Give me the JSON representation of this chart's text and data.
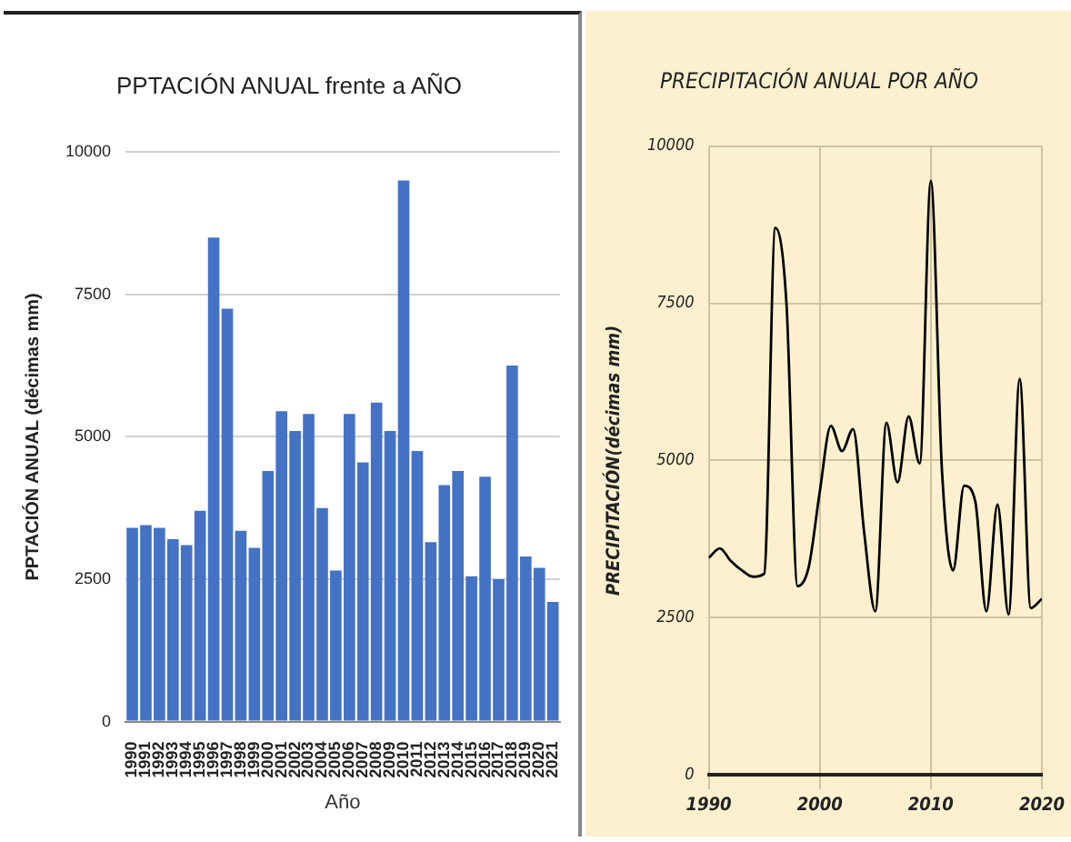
{
  "chart_data": [
    {
      "type": "bar",
      "title": "PPTACIÓN ANUAL frente a AÑO",
      "xlabel": "Año",
      "ylabel": "PPTACIÓN ANUAL (décimas mm)",
      "categories": [
        "1990",
        "1991",
        "1992",
        "1993",
        "1994",
        "1995",
        "1996",
        "1997",
        "1998",
        "1999",
        "2000",
        "2001",
        "2002",
        "2003",
        "2004",
        "2005",
        "2006",
        "2007",
        "2008",
        "2009",
        "2010",
        "2011",
        "2012",
        "2013",
        "2014",
        "2015",
        "2016",
        "2017",
        "2018",
        "2019",
        "2020",
        "2021"
      ],
      "values": [
        3400,
        3450,
        3400,
        3200,
        3100,
        3700,
        8500,
        7250,
        3350,
        3050,
        4400,
        5450,
        5100,
        5400,
        3750,
        2650,
        5400,
        4550,
        5600,
        5100,
        9500,
        4750,
        3150,
        4150,
        4400,
        2550,
        4300,
        2500,
        6250,
        2900,
        2700,
        2100
      ],
      "color": "#4472c4",
      "ylim": [
        0,
        10000
      ],
      "yticks": [
        0,
        2500,
        5000,
        7500,
        10000
      ],
      "grid": "y",
      "legend": false
    },
    {
      "type": "line",
      "title": "PRECIPITACIÓN ANUAL POR AÑO",
      "ylabel": "PRECIPITACIÓN(décimas mm)",
      "x": [
        1990,
        1991,
        1992,
        1993,
        1994,
        1995,
        1996,
        1997,
        1998,
        1999,
        2000,
        2001,
        2002,
        2003,
        2004,
        2005,
        2006,
        2007,
        2008,
        2009,
        2010,
        2011,
        2012,
        2013,
        2014,
        2015,
        2016,
        2017,
        2018,
        2019,
        2020
      ],
      "values": [
        3450,
        3600,
        3400,
        3250,
        3150,
        3200,
        8700,
        7500,
        3000,
        3300,
        4500,
        5550,
        5150,
        5500,
        3850,
        2600,
        5600,
        4650,
        5700,
        4950,
        9450,
        4850,
        3250,
        4600,
        4350,
        2600,
        4300,
        2550,
        6300,
        2650,
        2800
      ],
      "color": "#000000",
      "xlim": [
        1990,
        2020
      ],
      "xticks": [
        1990,
        2000,
        2010,
        2020
      ],
      "ylim": [
        0,
        10000
      ],
      "yticks": [
        0,
        2500,
        5000,
        7500,
        10000
      ],
      "grid": true,
      "legend": false,
      "marker": "none"
    }
  ]
}
